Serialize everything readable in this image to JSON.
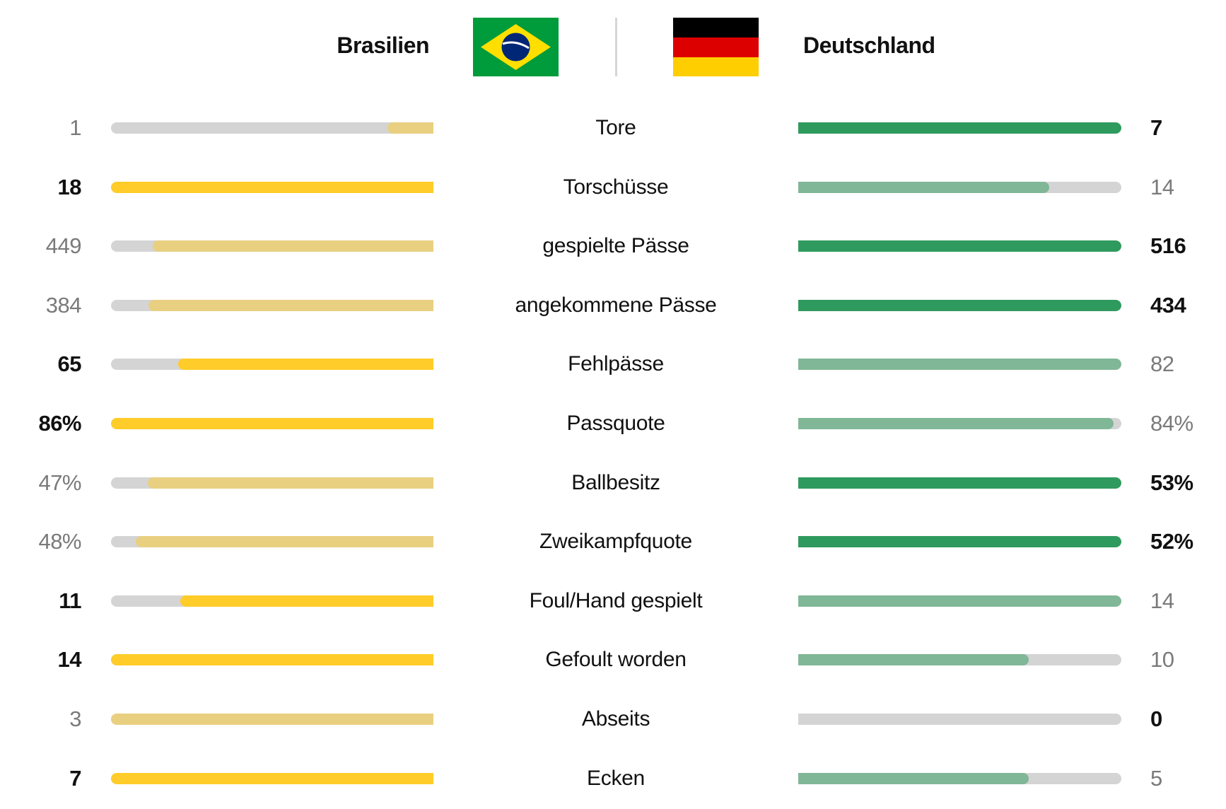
{
  "header": {
    "team_left": "Brasilien",
    "team_right": "Deutschland",
    "flag_left": "brazil-flag",
    "flag_right": "germany-flag"
  },
  "colors": {
    "left_strong": "#FFCC29",
    "left_muted": "#E9CF80",
    "right_strong": "#2F9A5E",
    "right_muted": "#80B797",
    "track": "#D4D4D4"
  },
  "stats": [
    {
      "label": "Tore",
      "left": "1",
      "right": "7",
      "left_value": 1,
      "right_value": 7,
      "highlight": "right"
    },
    {
      "label": "Torschüsse",
      "left": "18",
      "right": "14",
      "left_value": 18,
      "right_value": 14,
      "highlight": "left"
    },
    {
      "label": "gespielte Pässe",
      "left": "449",
      "right": "516",
      "left_value": 449,
      "right_value": 516,
      "highlight": "right"
    },
    {
      "label": "angekommene Pässe",
      "left": "384",
      "right": "434",
      "left_value": 384,
      "right_value": 434,
      "highlight": "right"
    },
    {
      "label": "Fehlpässe",
      "left": "65",
      "right": "82",
      "left_value": 65,
      "right_value": 82,
      "highlight": "left"
    },
    {
      "label": "Passquote",
      "left": "86%",
      "right": "84%",
      "left_value": 86,
      "right_value": 84,
      "highlight": "left"
    },
    {
      "label": "Ballbesitz",
      "left": "47%",
      "right": "53%",
      "left_value": 47,
      "right_value": 53,
      "highlight": "right"
    },
    {
      "label": "Zweikampfquote",
      "left": "48%",
      "right": "52%",
      "left_value": 48,
      "right_value": 52,
      "highlight": "right"
    },
    {
      "label": "Foul/Hand gespielt",
      "left": "11",
      "right": "14",
      "left_value": 11,
      "right_value": 14,
      "highlight": "left"
    },
    {
      "label": "Gefoult worden",
      "left": "14",
      "right": "10",
      "left_value": 14,
      "right_value": 10,
      "highlight": "left"
    },
    {
      "label": "Abseits",
      "left": "3",
      "right": "0",
      "left_value": 3,
      "right_value": 0,
      "highlight": "right"
    },
    {
      "label": "Ecken",
      "left": "7",
      "right": "5",
      "left_value": 7,
      "right_value": 5,
      "highlight": "left"
    }
  ]
}
